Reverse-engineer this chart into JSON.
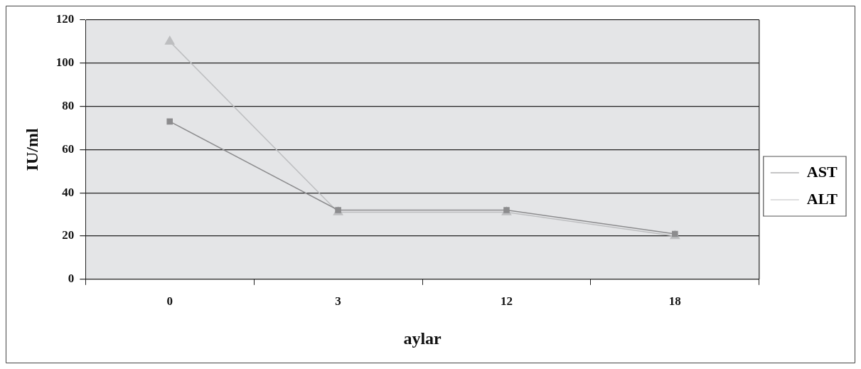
{
  "chart_data": {
    "type": "line",
    "xlabel": "aylar",
    "ylabel": "IU/ml",
    "categories": [
      "0",
      "3",
      "12",
      "18"
    ],
    "series": [
      {
        "name": "AST",
        "color": "#8c8c8e",
        "marker": "square",
        "values": [
          73,
          32,
          32,
          21
        ]
      },
      {
        "name": "ALT",
        "color": "#bdbec0",
        "marker": "triangle",
        "values": [
          110,
          31,
          31,
          20
        ]
      }
    ],
    "ylim": [
      0,
      120
    ],
    "yticks": [
      0,
      20,
      40,
      60,
      80,
      100,
      120
    ],
    "grid": "y",
    "legend": "right"
  }
}
